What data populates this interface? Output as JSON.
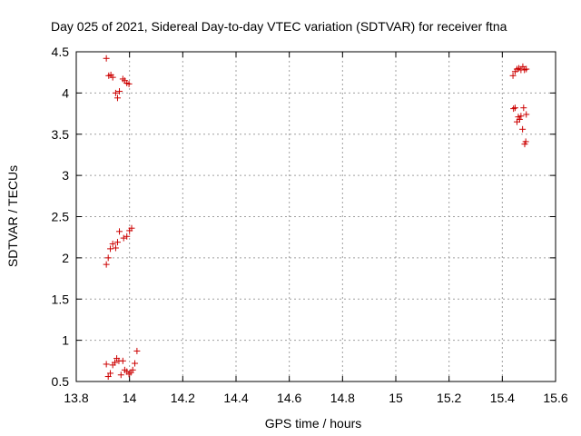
{
  "chart_data": {
    "type": "scatter",
    "title": "Day 025 of 2021, Sidereal Day-to-day VTEC variation (SDTVAR) for receiver ftna",
    "xlabel": "GPS time / hours",
    "ylabel": "SDTVAR / TECUs",
    "xlim": [
      13.8,
      15.6
    ],
    "ylim": [
      0.5,
      4.5
    ],
    "xticks": [
      "13.8",
      "14",
      "14.2",
      "14.4",
      "14.6",
      "14.8",
      "15",
      "15.2",
      "15.4",
      "15.6"
    ],
    "yticks": [
      "0.5",
      "1",
      "1.5",
      "2",
      "2.5",
      "3",
      "3.5",
      "4",
      "4.5"
    ],
    "grid": true,
    "legend": "none",
    "marker": "plus",
    "series_color": "#cc0000",
    "points": [
      [
        13.913,
        4.42
      ],
      [
        13.922,
        4.21
      ],
      [
        13.93,
        4.22
      ],
      [
        13.937,
        4.19
      ],
      [
        13.948,
        4.0
      ],
      [
        13.955,
        3.94
      ],
      [
        13.962,
        4.02
      ],
      [
        13.975,
        4.17
      ],
      [
        13.982,
        4.15
      ],
      [
        13.99,
        4.12
      ],
      [
        13.998,
        4.11
      ],
      [
        13.913,
        1.92
      ],
      [
        13.92,
        2.0
      ],
      [
        13.928,
        2.11
      ],
      [
        13.937,
        2.17
      ],
      [
        13.948,
        2.12
      ],
      [
        13.955,
        2.19
      ],
      [
        13.962,
        2.32
      ],
      [
        13.978,
        2.24
      ],
      [
        13.99,
        2.26
      ],
      [
        14.0,
        2.33
      ],
      [
        14.008,
        2.36
      ],
      [
        13.913,
        0.71
      ],
      [
        13.92,
        0.56
      ],
      [
        13.928,
        0.6
      ],
      [
        13.937,
        0.7
      ],
      [
        13.945,
        0.73
      ],
      [
        13.952,
        0.78
      ],
      [
        13.96,
        0.75
      ],
      [
        13.968,
        0.58
      ],
      [
        13.975,
        0.75
      ],
      [
        13.982,
        0.64
      ],
      [
        13.99,
        0.62
      ],
      [
        13.998,
        0.59
      ],
      [
        14.005,
        0.61
      ],
      [
        14.012,
        0.64
      ],
      [
        14.02,
        0.72
      ],
      [
        14.028,
        0.87
      ],
      [
        15.44,
        4.21
      ],
      [
        15.448,
        4.26
      ],
      [
        15.455,
        4.29
      ],
      [
        15.462,
        4.3
      ],
      [
        15.47,
        4.28
      ],
      [
        15.477,
        4.32
      ],
      [
        15.483,
        4.28
      ],
      [
        15.49,
        4.29
      ],
      [
        15.442,
        3.81
      ],
      [
        15.448,
        3.82
      ],
      [
        15.455,
        3.65
      ],
      [
        15.46,
        3.71
      ],
      [
        15.465,
        3.68
      ],
      [
        15.47,
        3.72
      ],
      [
        15.476,
        3.56
      ],
      [
        15.48,
        3.82
      ],
      [
        15.484,
        3.38
      ],
      [
        15.488,
        3.41
      ],
      [
        15.49,
        3.74
      ]
    ]
  }
}
